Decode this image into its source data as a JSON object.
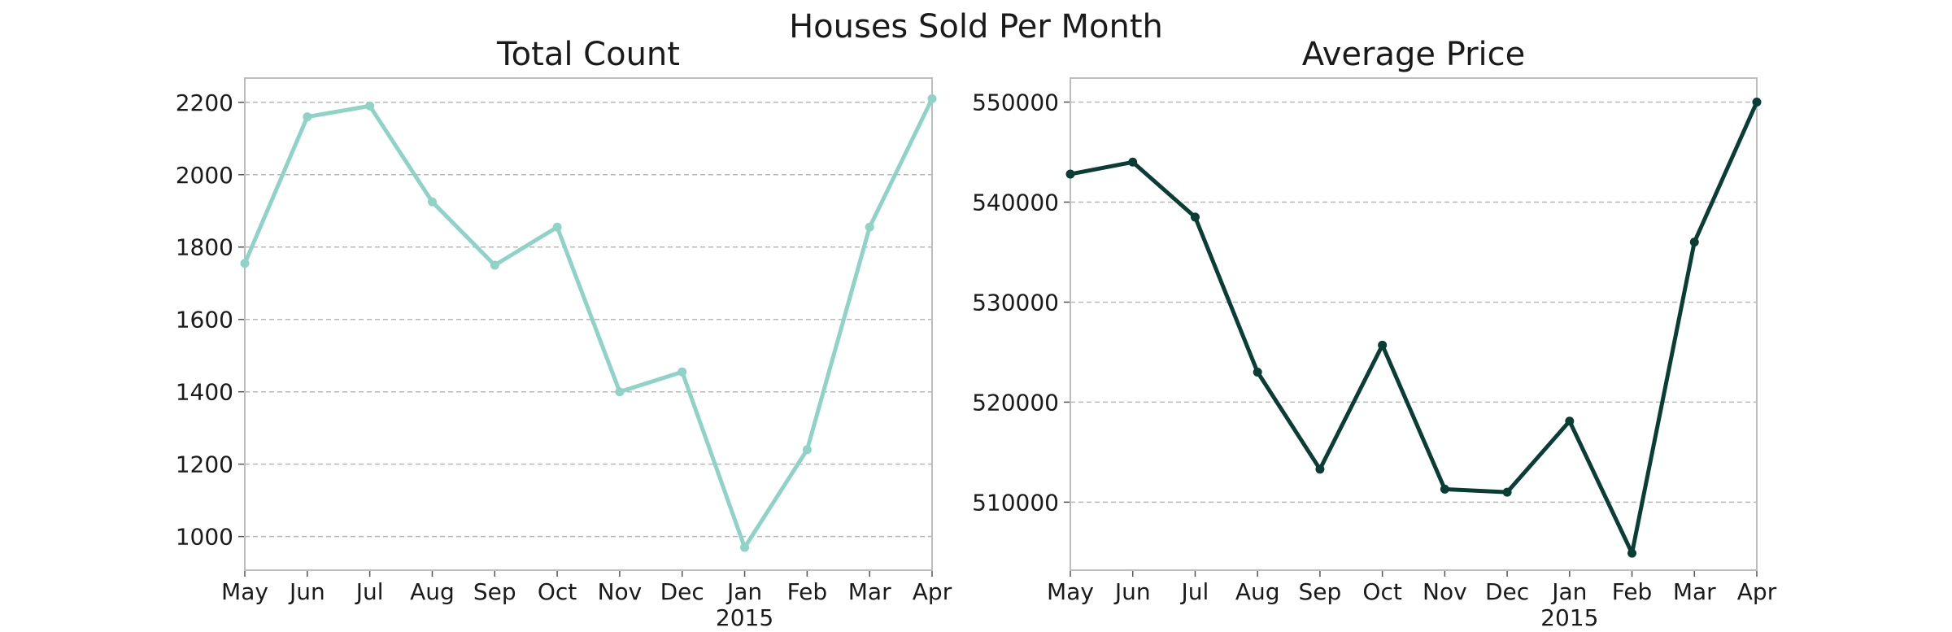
{
  "figure": {
    "title": "Houses Sold Per Month"
  },
  "chart_data": [
    {
      "type": "line",
      "title": "Total Count",
      "xlabel": "",
      "ylabel": "",
      "x": [
        "May",
        "Jun",
        "Jul",
        "Aug",
        "Sep",
        "Oct",
        "Nov",
        "Dec",
        "Jan",
        "Feb",
        "Mar",
        "Apr"
      ],
      "x_sublabel": {
        "under": "Jan",
        "text": "2015"
      },
      "series": [
        {
          "values": [
            1755,
            2160,
            2190,
            1925,
            1750,
            1855,
            1400,
            1455,
            970,
            1240,
            1855,
            2210
          ],
          "color": "#8fd3c7"
        }
      ],
      "ylim": [
        907,
        2267
      ],
      "yticks": [
        1000,
        1200,
        1400,
        1600,
        1800,
        2000,
        2200
      ],
      "ytick_labels": [
        "1000",
        "1200",
        "1400",
        "1600",
        "1800",
        "2000",
        "2200"
      ],
      "grid": "horizontal dashed"
    },
    {
      "type": "line",
      "title": "Average Price",
      "xlabel": "",
      "ylabel": "",
      "x": [
        "May",
        "Jun",
        "Jul",
        "Aug",
        "Sep",
        "Oct",
        "Nov",
        "Dec",
        "Jan",
        "Feb",
        "Mar",
        "Apr"
      ],
      "x_sublabel": {
        "under": "Jan",
        "text": "2015"
      },
      "series": [
        {
          "values": [
            542800,
            544000,
            538500,
            523000,
            513300,
            525700,
            511300,
            511000,
            518100,
            504900,
            536000,
            550000
          ],
          "color": "#0a3d34"
        }
      ],
      "ylim": [
        503200,
        552400
      ],
      "yticks": [
        510000,
        520000,
        530000,
        540000,
        550000
      ],
      "ytick_labels": [
        "510000",
        "520000",
        "530000",
        "540000",
        "550000"
      ],
      "grid": "horizontal dashed"
    }
  ]
}
